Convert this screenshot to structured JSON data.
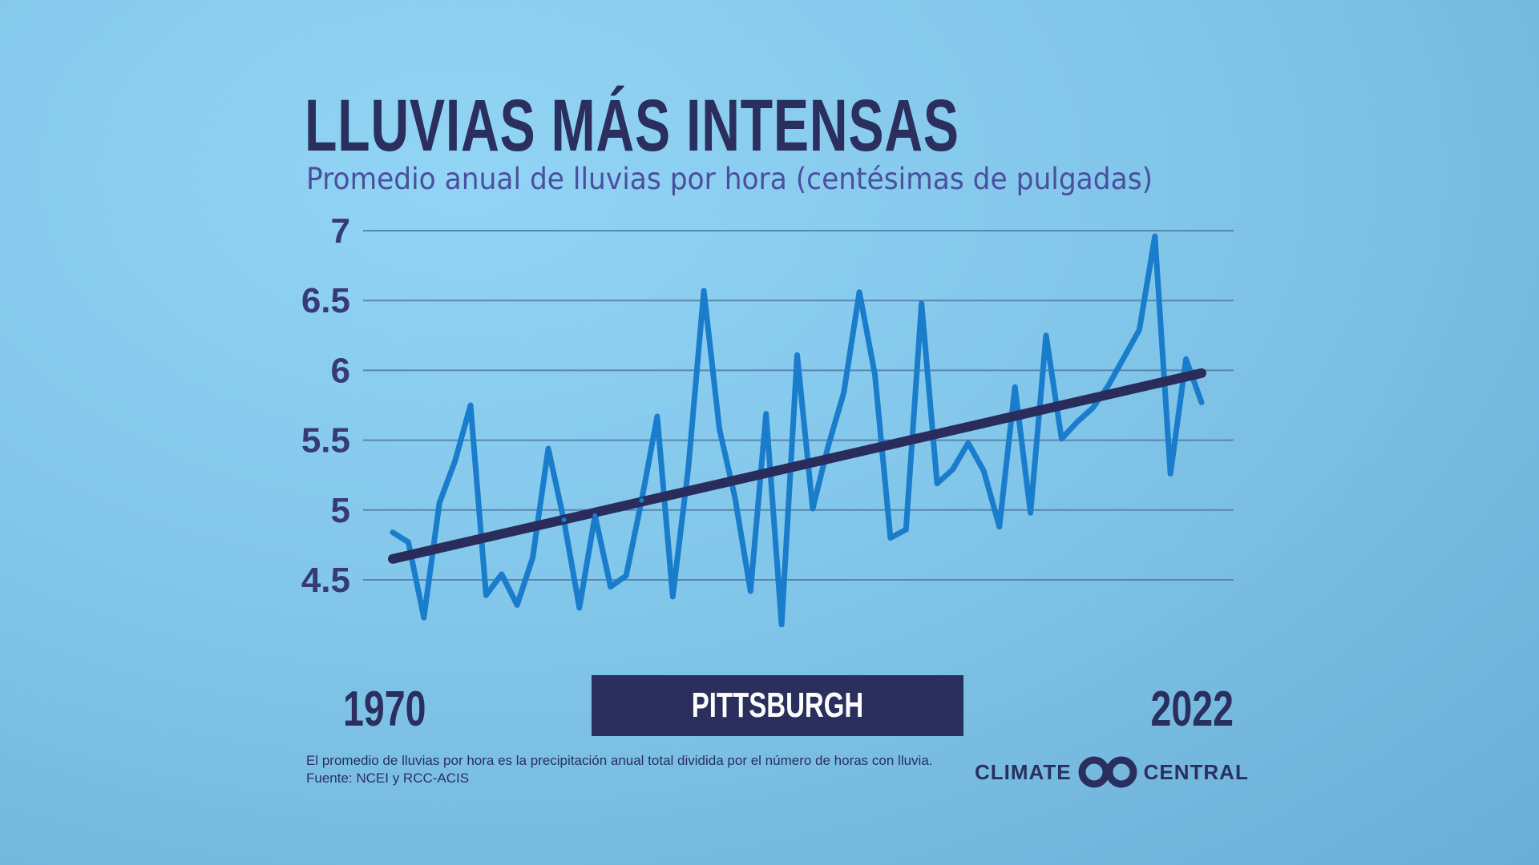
{
  "chart_data": {
    "type": "line",
    "title": "LLUVIAS MÁS INTENSAS",
    "subtitle": "Promedio anual de lluvias por hora (centésimas de pulgadas)",
    "ylim": [
      4.2,
      7
    ],
    "yticks": [
      "7",
      "6.5",
      "6",
      "5.5",
      "5",
      "4.5"
    ],
    "ytick_values": [
      7,
      6.5,
      6,
      5.5,
      5,
      4.5
    ],
    "grid": true,
    "x_start_label": "1970",
    "x_end_label": "2022",
    "x": [
      1970,
      1971,
      1972,
      1973,
      1974,
      1975,
      1976,
      1977,
      1978,
      1979,
      1980,
      1981,
      1982,
      1983,
      1984,
      1985,
      1986,
      1987,
      1988,
      1989,
      1990,
      1991,
      1992,
      1993,
      1994,
      1995,
      1996,
      1997,
      1998,
      1999,
      2000,
      2001,
      2002,
      2003,
      2004,
      2005,
      2006,
      2007,
      2008,
      2009,
      2010,
      2011,
      2012,
      2013,
      2014,
      2015,
      2016,
      2017,
      2018,
      2019,
      2020,
      2021,
      2022
    ],
    "series": [
      {
        "values": [
          4.84,
          4.77,
          4.23,
          5.05,
          5.35,
          5.75,
          4.39,
          4.54,
          4.32,
          4.66,
          5.44,
          4.93,
          4.3,
          4.96,
          4.45,
          4.53,
          5.07,
          5.67,
          4.38,
          5.3,
          6.57,
          5.58,
          5.09,
          4.42,
          5.69,
          4.18,
          6.11,
          5.01,
          5.46,
          5.84,
          6.56,
          5.97,
          4.8,
          4.86,
          6.48,
          5.19,
          5.29,
          5.48,
          5.28,
          4.88,
          5.88,
          4.98,
          6.25,
          5.51,
          5.63,
          5.73,
          5.89,
          6.09,
          6.29,
          6.96,
          5.26,
          6.08,
          5.77
        ],
        "color": "#1a7dcc"
      }
    ],
    "trend": {
      "start": [
        1970,
        4.65
      ],
      "end": [
        2022,
        5.98
      ],
      "color": "#2a2d5c"
    }
  },
  "location": "PITTSBURGH",
  "footnote": "El promedio de lluvias por hora es la precipitación anual total dividida por el número de horas con lluvia.",
  "source": "Fuente: NCEI y RCC-ACIS",
  "logo": {
    "left": "CLIMATE",
    "right": "CENTRAL"
  },
  "colors": {
    "title": "#2b2f5e",
    "subtitle": "#4b4f9f",
    "grid": "#5a86b0",
    "background": "#86c9ec"
  }
}
